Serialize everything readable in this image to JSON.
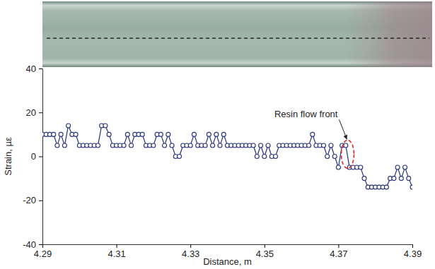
{
  "chart_data": {
    "type": "line",
    "xlabel": "Distance, m",
    "ylabel": "Strain, µε",
    "xlim": [
      4.29,
      4.39
    ],
    "xticks": [
      4.29,
      4.31,
      4.33,
      4.35,
      4.37,
      4.39
    ],
    "ylim": [
      -40,
      40
    ],
    "yticks": [
      -40,
      -20,
      0,
      20,
      40
    ],
    "grid": false,
    "x": [
      4.29,
      4.291,
      4.292,
      4.293,
      4.294,
      4.295,
      4.296,
      4.297,
      4.298,
      4.299,
      4.3,
      4.301,
      4.302,
      4.303,
      4.304,
      4.305,
      4.306,
      4.307,
      4.308,
      4.309,
      4.31,
      4.311,
      4.312,
      4.313,
      4.314,
      4.315,
      4.316,
      4.317,
      4.318,
      4.319,
      4.32,
      4.321,
      4.322,
      4.323,
      4.324,
      4.325,
      4.326,
      4.327,
      4.328,
      4.329,
      4.33,
      4.331,
      4.332,
      4.333,
      4.334,
      4.335,
      4.336,
      4.337,
      4.338,
      4.339,
      4.34,
      4.341,
      4.342,
      4.343,
      4.344,
      4.345,
      4.346,
      4.347,
      4.348,
      4.349,
      4.35,
      4.351,
      4.352,
      4.353,
      4.354,
      4.355,
      4.356,
      4.357,
      4.358,
      4.359,
      4.36,
      4.361,
      4.362,
      4.363,
      4.364,
      4.365,
      4.366,
      4.367,
      4.368,
      4.369,
      4.37,
      4.371,
      4.372,
      4.373,
      4.374,
      4.375,
      4.376,
      4.377,
      4.378,
      4.379,
      4.38,
      4.381,
      4.382,
      4.383,
      4.384,
      4.385,
      4.386,
      4.387,
      4.388,
      4.389,
      4.39
    ],
    "series": [
      {
        "color": "#26337a",
        "marker": "circle",
        "line_style": "solid",
        "values": [
          10,
          10,
          10,
          10,
          5,
          10,
          5,
          14,
          10,
          10,
          5,
          5,
          5,
          5,
          5,
          5,
          14,
          14,
          10,
          5,
          5,
          5,
          5,
          10,
          5,
          10,
          10,
          10,
          5,
          5,
          5,
          10,
          10,
          5,
          10,
          5,
          0,
          0,
          5,
          5,
          5,
          10,
          5,
          5,
          5,
          10,
          5,
          10,
          5,
          10,
          5,
          5,
          5,
          5,
          5,
          5,
          5,
          5,
          0,
          5,
          0,
          5,
          0,
          0,
          5,
          5,
          5,
          5,
          5,
          5,
          5,
          5,
          5,
          10,
          5,
          5,
          5,
          0,
          5,
          0,
          -5,
          5,
          5,
          -5,
          -5,
          -5,
          -5,
          -10,
          -14,
          -14,
          -14,
          -14,
          -14,
          -14,
          -10,
          -10,
          -5,
          -10,
          -5,
          -10,
          -14
        ]
      }
    ],
    "annotations": [
      {
        "text": "Resin flow front",
        "x": 4.3725,
        "y": 1,
        "color": "#e0241b"
      }
    ]
  }
}
